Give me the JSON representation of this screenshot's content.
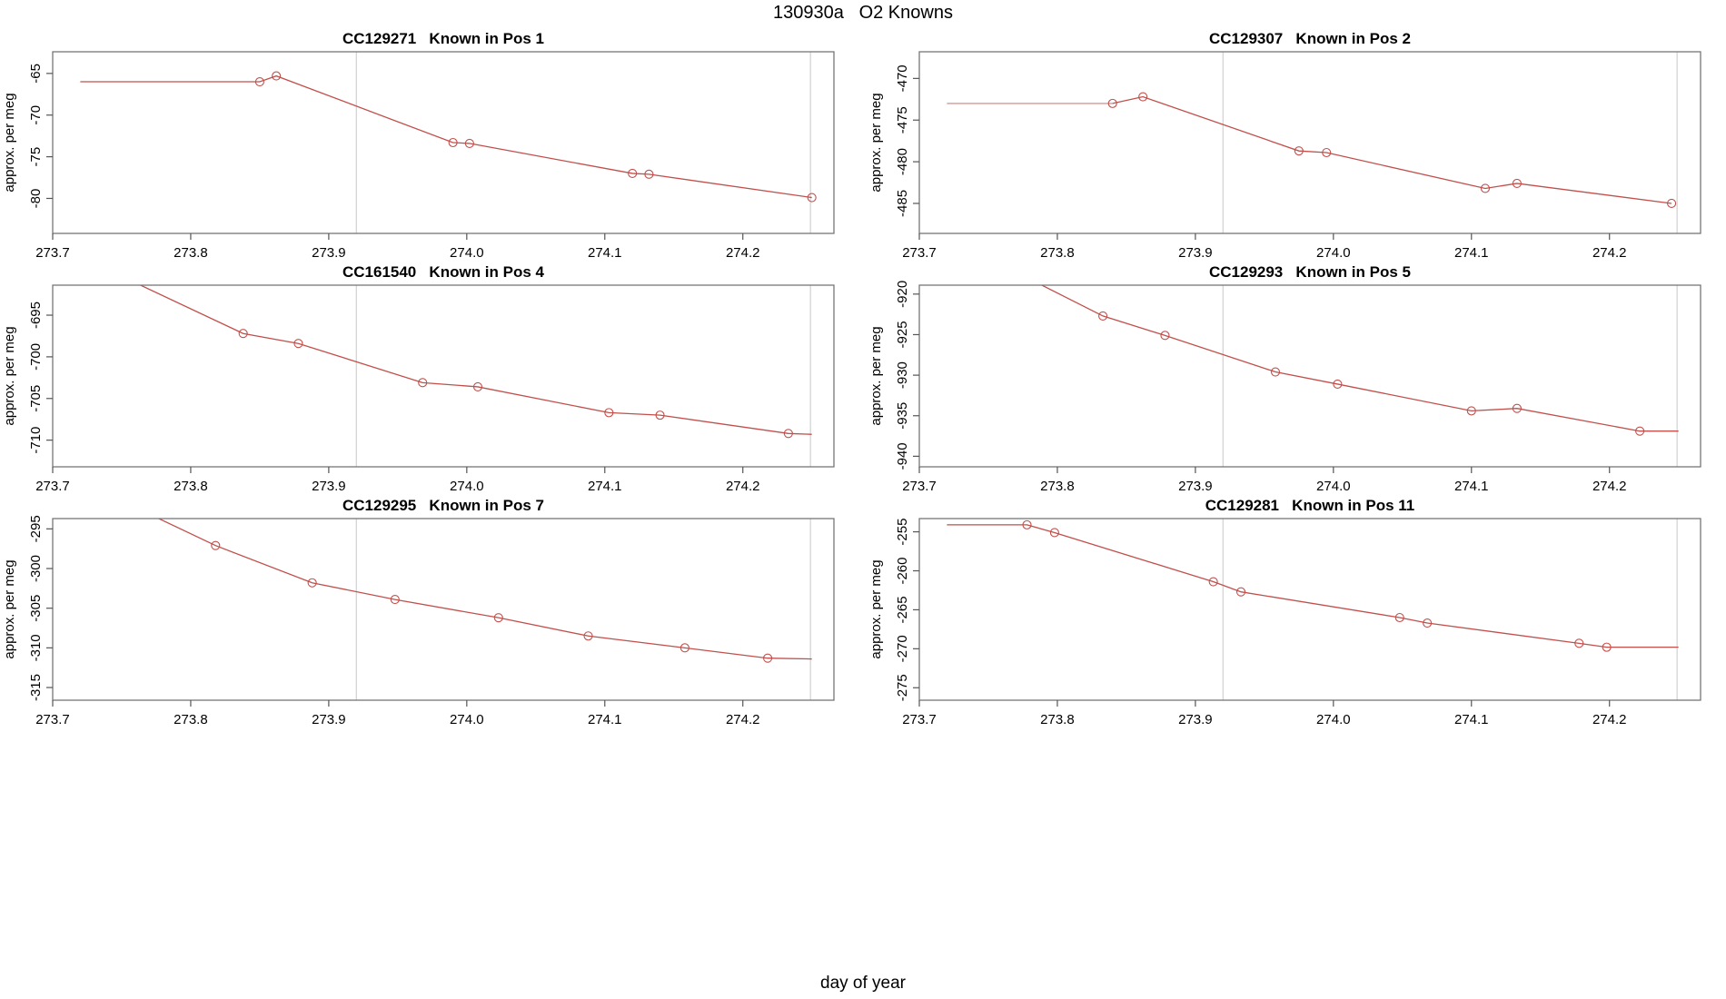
{
  "page": {
    "title": "130930a   O2 Knowns",
    "xlabel": "day of year"
  },
  "chart_data": {
    "type": "line",
    "layout": "2-columns-3-rows",
    "title": "130930a   O2 Knowns",
    "xlabel": "day of year",
    "ylabel": "approx. per meg",
    "xlim": [
      273.7,
      274.266
    ],
    "x_ticks": [
      273.7,
      273.8,
      273.9,
      274.0,
      274.1,
      274.2
    ],
    "x_tick_labels": [
      "273.7",
      "273.8",
      "273.9",
      "274.0",
      "274.1",
      "274.2"
    ],
    "vlines": [
      273.92,
      274.249
    ],
    "grid": false,
    "colors": {
      "line": "#c14f4b",
      "pre": "#e2acac",
      "vline": "#d0d0d0",
      "box": "#777777",
      "tick": "#555555"
    },
    "charts": [
      {
        "id": "CC129271",
        "pos": "Known in Pos 1",
        "ylim": [
          -84.2,
          -62.4
        ],
        "yticks": [
          -65,
          -70,
          -75,
          -80
        ],
        "ytick_labels": [
          "-65",
          "-70",
          "-75",
          "-80"
        ],
        "pre": null,
        "points": [
          [
            273.72,
            -66.0,
            0
          ],
          [
            273.85,
            -66.0,
            1
          ],
          [
            273.862,
            -65.3,
            1
          ],
          [
            273.99,
            -73.3,
            1
          ],
          [
            274.002,
            -73.4,
            1
          ],
          [
            274.12,
            -77.0,
            1
          ],
          [
            274.132,
            -77.1,
            1
          ],
          [
            274.25,
            -79.9,
            1
          ]
        ]
      },
      {
        "id": "CC129307",
        "pos": "Known in Pos 2",
        "ylim": [
          -488.6,
          -466.8
        ],
        "yticks": [
          -470,
          -475,
          -480,
          -485
        ],
        "ytick_labels": [
          "-470",
          "-475",
          "-480",
          "-485"
        ],
        "pre": [
          [
            273.72,
            -473.0
          ],
          [
            273.84,
            -473.0
          ]
        ],
        "points": [
          [
            273.84,
            -473.0,
            1
          ],
          [
            273.862,
            -472.2,
            1
          ],
          [
            273.975,
            -478.7,
            1
          ],
          [
            273.995,
            -478.9,
            1
          ],
          [
            274.11,
            -483.2,
            1
          ],
          [
            274.133,
            -482.6,
            1
          ],
          [
            274.245,
            -485.0,
            1
          ]
        ]
      },
      {
        "id": "CC161540",
        "pos": "Known in Pos 4",
        "ylim": [
          -713.2,
          -691.4
        ],
        "yticks": [
          -695,
          -700,
          -705,
          -710
        ],
        "ytick_labels": [
          "-695",
          "-700",
          "-705",
          "-710"
        ],
        "pre": null,
        "points": [
          [
            273.72,
            -688.0,
            0
          ],
          [
            273.838,
            -697.2,
            1
          ],
          [
            273.878,
            -698.4,
            1
          ],
          [
            273.968,
            -703.1,
            1
          ],
          [
            274.008,
            -703.6,
            1
          ],
          [
            274.103,
            -706.7,
            1
          ],
          [
            274.14,
            -707.0,
            1
          ],
          [
            274.233,
            -709.2,
            1
          ],
          [
            274.25,
            -709.3,
            0
          ]
        ]
      },
      {
        "id": "CC129293",
        "pos": "Known in Pos 5",
        "ylim": [
          -941.3,
          -918.9
        ],
        "yticks": [
          -920,
          -925,
          -930,
          -935,
          -940
        ],
        "ytick_labels": [
          "-920",
          "-925",
          "-930",
          "-935",
          "-940"
        ],
        "pre": null,
        "points": [
          [
            273.72,
            -913.0,
            0
          ],
          [
            273.833,
            -922.7,
            1
          ],
          [
            273.878,
            -925.1,
            1
          ],
          [
            273.958,
            -929.6,
            1
          ],
          [
            274.003,
            -931.1,
            1
          ],
          [
            274.1,
            -934.4,
            1
          ],
          [
            274.133,
            -934.1,
            1
          ],
          [
            274.222,
            -936.9,
            1
          ],
          [
            274.25,
            -936.9,
            0
          ]
        ]
      },
      {
        "id": "CC129295",
        "pos": "Known in Pos 7",
        "ylim": [
          -316.6,
          -293.7
        ],
        "yticks": [
          -295,
          -300,
          -305,
          -310,
          -315
        ],
        "ytick_labels": [
          "-295",
          "-300",
          "-305",
          "-310",
          "-315"
        ],
        "pre": null,
        "points": [
          [
            273.72,
            -289.0,
            0
          ],
          [
            273.818,
            -297.1,
            1
          ],
          [
            273.888,
            -301.8,
            1
          ],
          [
            273.948,
            -303.9,
            1
          ],
          [
            274.023,
            -306.2,
            1
          ],
          [
            274.088,
            -308.5,
            1
          ],
          [
            274.158,
            -310.0,
            1
          ],
          [
            274.218,
            -311.3,
            1
          ],
          [
            274.25,
            -311.4,
            0
          ]
        ]
      },
      {
        "id": "CC129281",
        "pos": "Known in Pos 11",
        "ylim": [
          -276.6,
          -253.3
        ],
        "yticks": [
          -255,
          -260,
          -265,
          -270,
          -275
        ],
        "ytick_labels": [
          "-255",
          "-260",
          "-265",
          "-270",
          "-275"
        ],
        "pre": null,
        "points": [
          [
            273.72,
            -254.1,
            0
          ],
          [
            273.778,
            -254.1,
            1
          ],
          [
            273.798,
            -255.1,
            1
          ],
          [
            273.913,
            -261.4,
            1
          ],
          [
            273.933,
            -262.7,
            1
          ],
          [
            274.048,
            -266.0,
            1
          ],
          [
            274.068,
            -266.7,
            1
          ],
          [
            274.178,
            -269.3,
            1
          ],
          [
            274.198,
            -269.8,
            1
          ],
          [
            274.25,
            -269.8,
            0
          ]
        ]
      }
    ]
  }
}
